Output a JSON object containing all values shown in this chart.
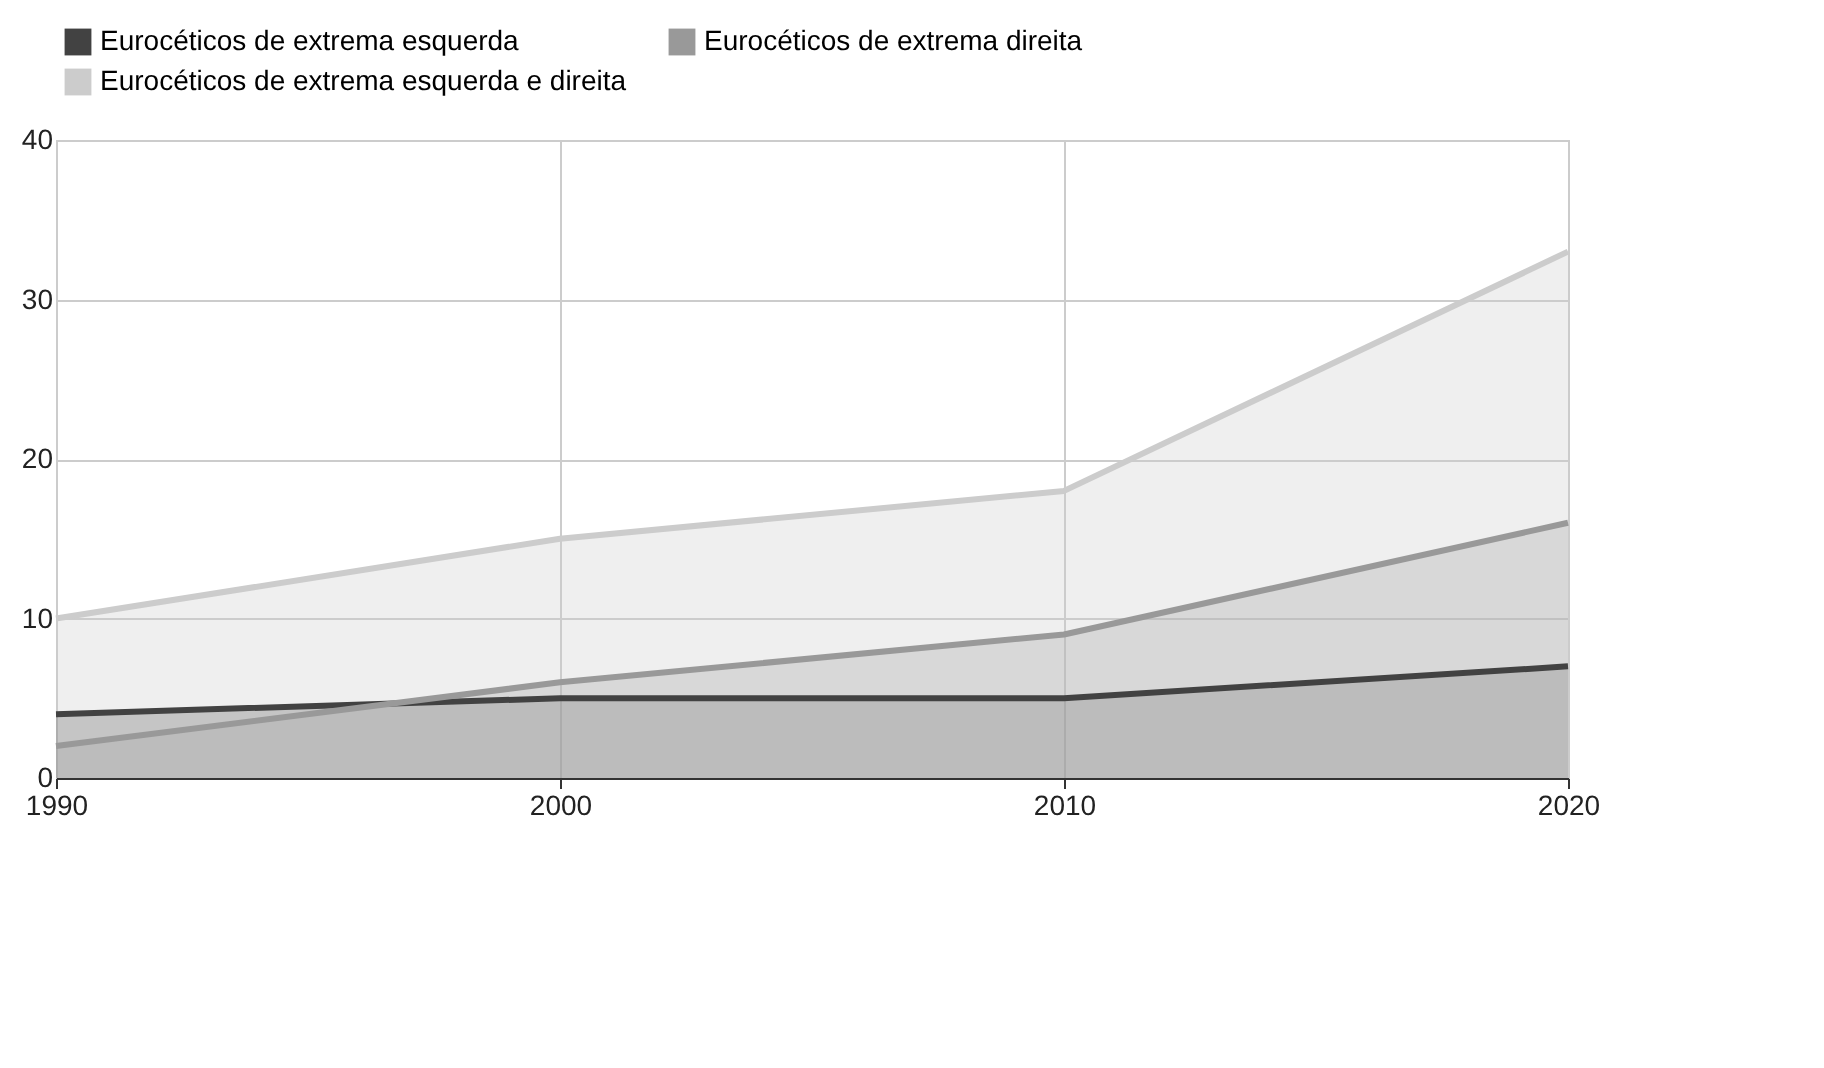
{
  "chart_data": {
    "type": "area",
    "x": [
      1990,
      2000,
      2010,
      2020
    ],
    "series": [
      {
        "name": "Eurocéticos de extrema esquerda",
        "color": "#424242",
        "values": [
          4,
          5,
          5,
          7
        ]
      },
      {
        "name": "Eurocéticos de extrema direita",
        "color": "#999999",
        "values": [
          2,
          6,
          9,
          16
        ]
      },
      {
        "name": "Eurocéticos de extrema esquerda e direita",
        "color": "#cccccc",
        "values": [
          10,
          15,
          18,
          33
        ]
      }
    ],
    "stacked": false,
    "xlim": [
      1990,
      2020
    ],
    "xticks": [
      1990,
      2000,
      2010,
      2020
    ],
    "ylim": [
      0,
      40
    ],
    "yticks": [
      0,
      10,
      20,
      30,
      40
    ],
    "grid": true,
    "legend": "top"
  }
}
